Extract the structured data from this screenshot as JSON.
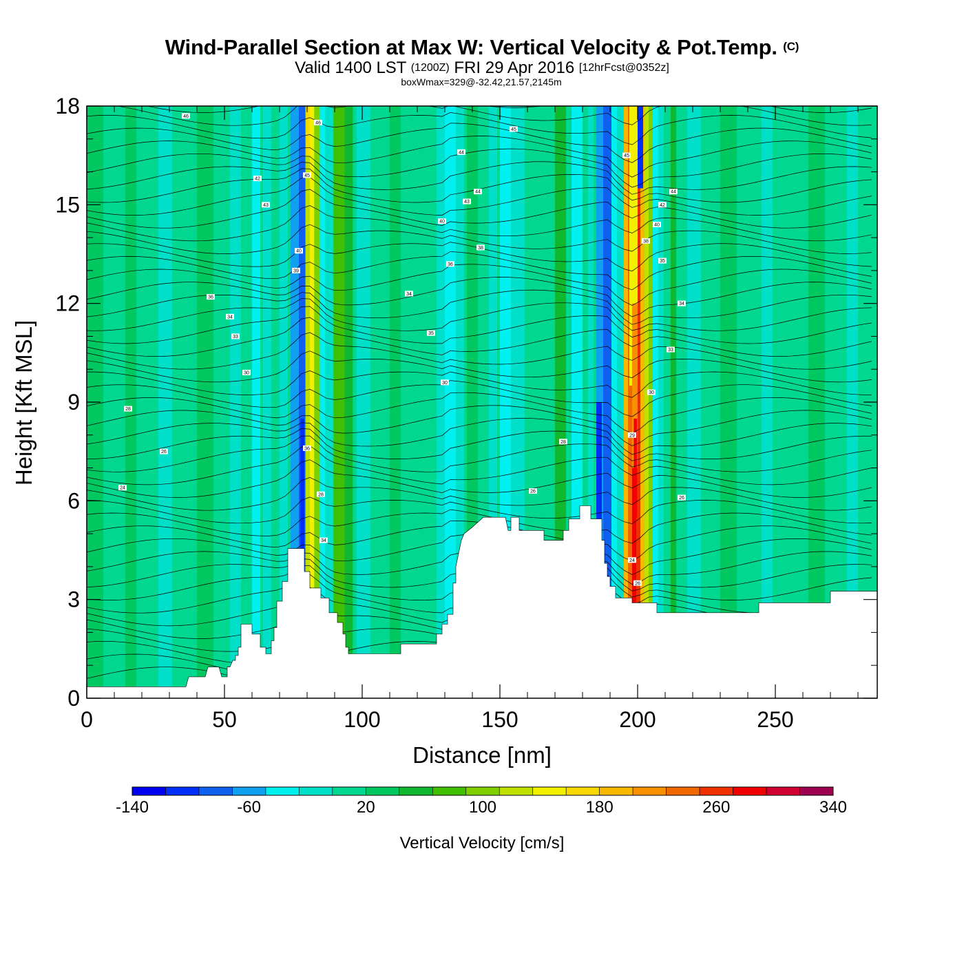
{
  "header": {
    "title": "Wind-Parallel Section at Max W: Vertical Velocity & Pot.Temp.",
    "copyright": "(C)",
    "valid_prefix": "Valid 1400 LST",
    "valid_zulu": "(1200Z)",
    "valid_date": "FRI 29 Apr 2016",
    "forecast": "[12hrFcst@0352z]",
    "box_wmax": "boxWmax=329@-32.42,21.57,2145m"
  },
  "chart_data": {
    "type": "heatmap",
    "xlabel": "Distance [nm]",
    "ylabel": "Height [Kft MSL]",
    "xlim": [
      0,
      287
    ],
    "ylim": [
      0,
      18
    ],
    "x_ticks": [
      0,
      50,
      100,
      150,
      200,
      250
    ],
    "y_ticks": [
      0,
      3,
      6,
      9,
      12,
      15,
      18
    ],
    "colorbar": {
      "label": "Vertical Velocity [cm/s]",
      "min": -140,
      "max": 340,
      "step": 20,
      "tick_values": [
        -140,
        -60,
        20,
        100,
        180,
        260,
        340
      ],
      "colors": [
        "#0000f0",
        "#0030f8",
        "#1060f0",
        "#10a0f0",
        "#00f0f0",
        "#00e0c8",
        "#00d890",
        "#00c860",
        "#10b830",
        "#40c000",
        "#80d000",
        "#c0e000",
        "#f0f000",
        "#f8d800",
        "#f8b800",
        "#f89000",
        "#f06800",
        "#f03000",
        "#f00000",
        "#d00030",
        "#a00050"
      ]
    },
    "terrain_top_kft": [
      [
        0,
        0.35
      ],
      [
        36,
        0.35
      ],
      [
        37,
        0.65
      ],
      [
        43,
        0.65
      ],
      [
        44,
        0.95
      ],
      [
        48,
        0.95
      ],
      [
        49,
        0.65
      ],
      [
        51,
        0.65
      ],
      [
        51,
        0.95
      ],
      [
        52,
        0.95
      ],
      [
        53,
        1.15
      ],
      [
        54,
        1.15
      ],
      [
        54,
        1.3
      ],
      [
        55,
        1.3
      ],
      [
        55,
        1.55
      ],
      [
        56,
        1.55
      ],
      [
        56,
        2.25
      ],
      [
        60,
        2.25
      ],
      [
        60,
        1.95
      ],
      [
        63,
        1.95
      ],
      [
        63,
        1.55
      ],
      [
        65,
        1.55
      ],
      [
        65,
        1.35
      ],
      [
        67,
        1.35
      ],
      [
        67,
        1.75
      ],
      [
        68,
        1.75
      ],
      [
        68,
        2.15
      ],
      [
        69,
        2.15
      ],
      [
        69,
        2.95
      ],
      [
        71,
        2.95
      ],
      [
        71,
        3.55
      ],
      [
        73,
        3.55
      ],
      [
        73,
        4.55
      ],
      [
        79,
        4.55
      ],
      [
        79,
        3.85
      ],
      [
        81,
        3.85
      ],
      [
        81,
        3.35
      ],
      [
        85,
        3.35
      ],
      [
        85,
        3.05
      ],
      [
        88,
        3.05
      ],
      [
        88,
        2.6
      ],
      [
        91,
        2.6
      ],
      [
        91,
        2.3
      ],
      [
        93,
        2.3
      ],
      [
        93,
        1.95
      ],
      [
        94,
        1.95
      ],
      [
        94,
        1.55
      ],
      [
        95,
        1.55
      ],
      [
        95,
        1.35
      ],
      [
        114,
        1.35
      ],
      [
        114,
        1.65
      ],
      [
        127,
        1.65
      ],
      [
        127,
        1.95
      ],
      [
        129,
        1.95
      ],
      [
        129,
        2.25
      ],
      [
        131,
        2.25
      ],
      [
        131,
        2.55
      ],
      [
        133,
        2.55
      ],
      [
        133,
        3.5
      ],
      [
        134,
        3.5
      ],
      [
        134,
        4.0
      ],
      [
        135,
        4.4
      ],
      [
        136,
        4.8
      ],
      [
        137,
        5.0
      ],
      [
        140,
        5.2
      ],
      [
        144,
        5.5
      ],
      [
        152,
        5.5
      ],
      [
        153,
        5.1
      ],
      [
        154,
        5.1
      ],
      [
        154,
        5.5
      ],
      [
        157,
        5.5
      ],
      [
        157,
        5.1
      ],
      [
        166,
        5.1
      ],
      [
        166,
        4.8
      ],
      [
        173,
        4.8
      ],
      [
        173,
        5.1
      ],
      [
        175,
        5.1
      ],
      [
        175,
        5.45
      ],
      [
        179,
        5.45
      ],
      [
        179,
        5.85
      ],
      [
        183,
        5.85
      ],
      [
        183,
        5.45
      ],
      [
        187,
        5.45
      ],
      [
        187,
        4.8
      ],
      [
        188,
        4.8
      ],
      [
        188,
        4.1
      ],
      [
        189,
        4.1
      ],
      [
        189,
        3.7
      ],
      [
        190,
        3.7
      ],
      [
        190,
        3.4
      ],
      [
        192,
        3.4
      ],
      [
        192,
        3.05
      ],
      [
        198,
        3.05
      ],
      [
        198,
        2.9
      ],
      [
        207,
        2.9
      ],
      [
        207,
        2.6
      ],
      [
        244,
        2.6
      ],
      [
        244,
        2.9
      ],
      [
        270,
        2.9
      ],
      [
        270,
        3.25
      ],
      [
        287,
        3.25
      ]
    ],
    "contour_labels": [
      {
        "x": 36,
        "y": 17.7,
        "text": "46"
      },
      {
        "x": 84,
        "y": 17.5,
        "text": "46"
      },
      {
        "x": 155,
        "y": 17.3,
        "text": "45"
      },
      {
        "x": 136,
        "y": 16.6,
        "text": "44"
      },
      {
        "x": 196,
        "y": 16.5,
        "text": "45"
      },
      {
        "x": 80,
        "y": 15.9,
        "text": "45"
      },
      {
        "x": 62,
        "y": 15.8,
        "text": "42"
      },
      {
        "x": 142,
        "y": 15.4,
        "text": "44"
      },
      {
        "x": 213,
        "y": 15.4,
        "text": "44"
      },
      {
        "x": 138,
        "y": 15.1,
        "text": "43"
      },
      {
        "x": 209,
        "y": 15.0,
        "text": "42"
      },
      {
        "x": 65,
        "y": 15.0,
        "text": "43"
      },
      {
        "x": 129,
        "y": 14.5,
        "text": "40"
      },
      {
        "x": 207,
        "y": 14.4,
        "text": "40"
      },
      {
        "x": 203,
        "y": 13.9,
        "text": "38"
      },
      {
        "x": 143,
        "y": 13.7,
        "text": "38"
      },
      {
        "x": 77,
        "y": 13.6,
        "text": "40"
      },
      {
        "x": 209,
        "y": 13.3,
        "text": "35"
      },
      {
        "x": 132,
        "y": 13.2,
        "text": "36"
      },
      {
        "x": 76,
        "y": 13.0,
        "text": "39"
      },
      {
        "x": 117,
        "y": 12.3,
        "text": "34"
      },
      {
        "x": 45,
        "y": 12.2,
        "text": "36"
      },
      {
        "x": 216,
        "y": 12.0,
        "text": "34"
      },
      {
        "x": 52,
        "y": 11.6,
        "text": "34"
      },
      {
        "x": 125,
        "y": 11.1,
        "text": "35"
      },
      {
        "x": 54,
        "y": 11.0,
        "text": "33"
      },
      {
        "x": 212,
        "y": 10.6,
        "text": "33"
      },
      {
        "x": 58,
        "y": 9.9,
        "text": "30"
      },
      {
        "x": 130,
        "y": 9.6,
        "text": "30"
      },
      {
        "x": 205,
        "y": 9.3,
        "text": "30"
      },
      {
        "x": 15,
        "y": 8.8,
        "text": "28"
      },
      {
        "x": 198,
        "y": 8.0,
        "text": "29"
      },
      {
        "x": 173,
        "y": 7.8,
        "text": "28"
      },
      {
        "x": 80,
        "y": 7.6,
        "text": "36"
      },
      {
        "x": 28,
        "y": 7.5,
        "text": "26"
      },
      {
        "x": 13,
        "y": 6.4,
        "text": "24"
      },
      {
        "x": 162,
        "y": 6.3,
        "text": "26"
      },
      {
        "x": 85,
        "y": 6.2,
        "text": "28"
      },
      {
        "x": 216,
        "y": 6.1,
        "text": "26"
      },
      {
        "x": 86,
        "y": 4.8,
        "text": "34"
      },
      {
        "x": 198,
        "y": 4.2,
        "text": "24"
      },
      {
        "x": 200,
        "y": 3.5,
        "text": "26"
      }
    ]
  }
}
